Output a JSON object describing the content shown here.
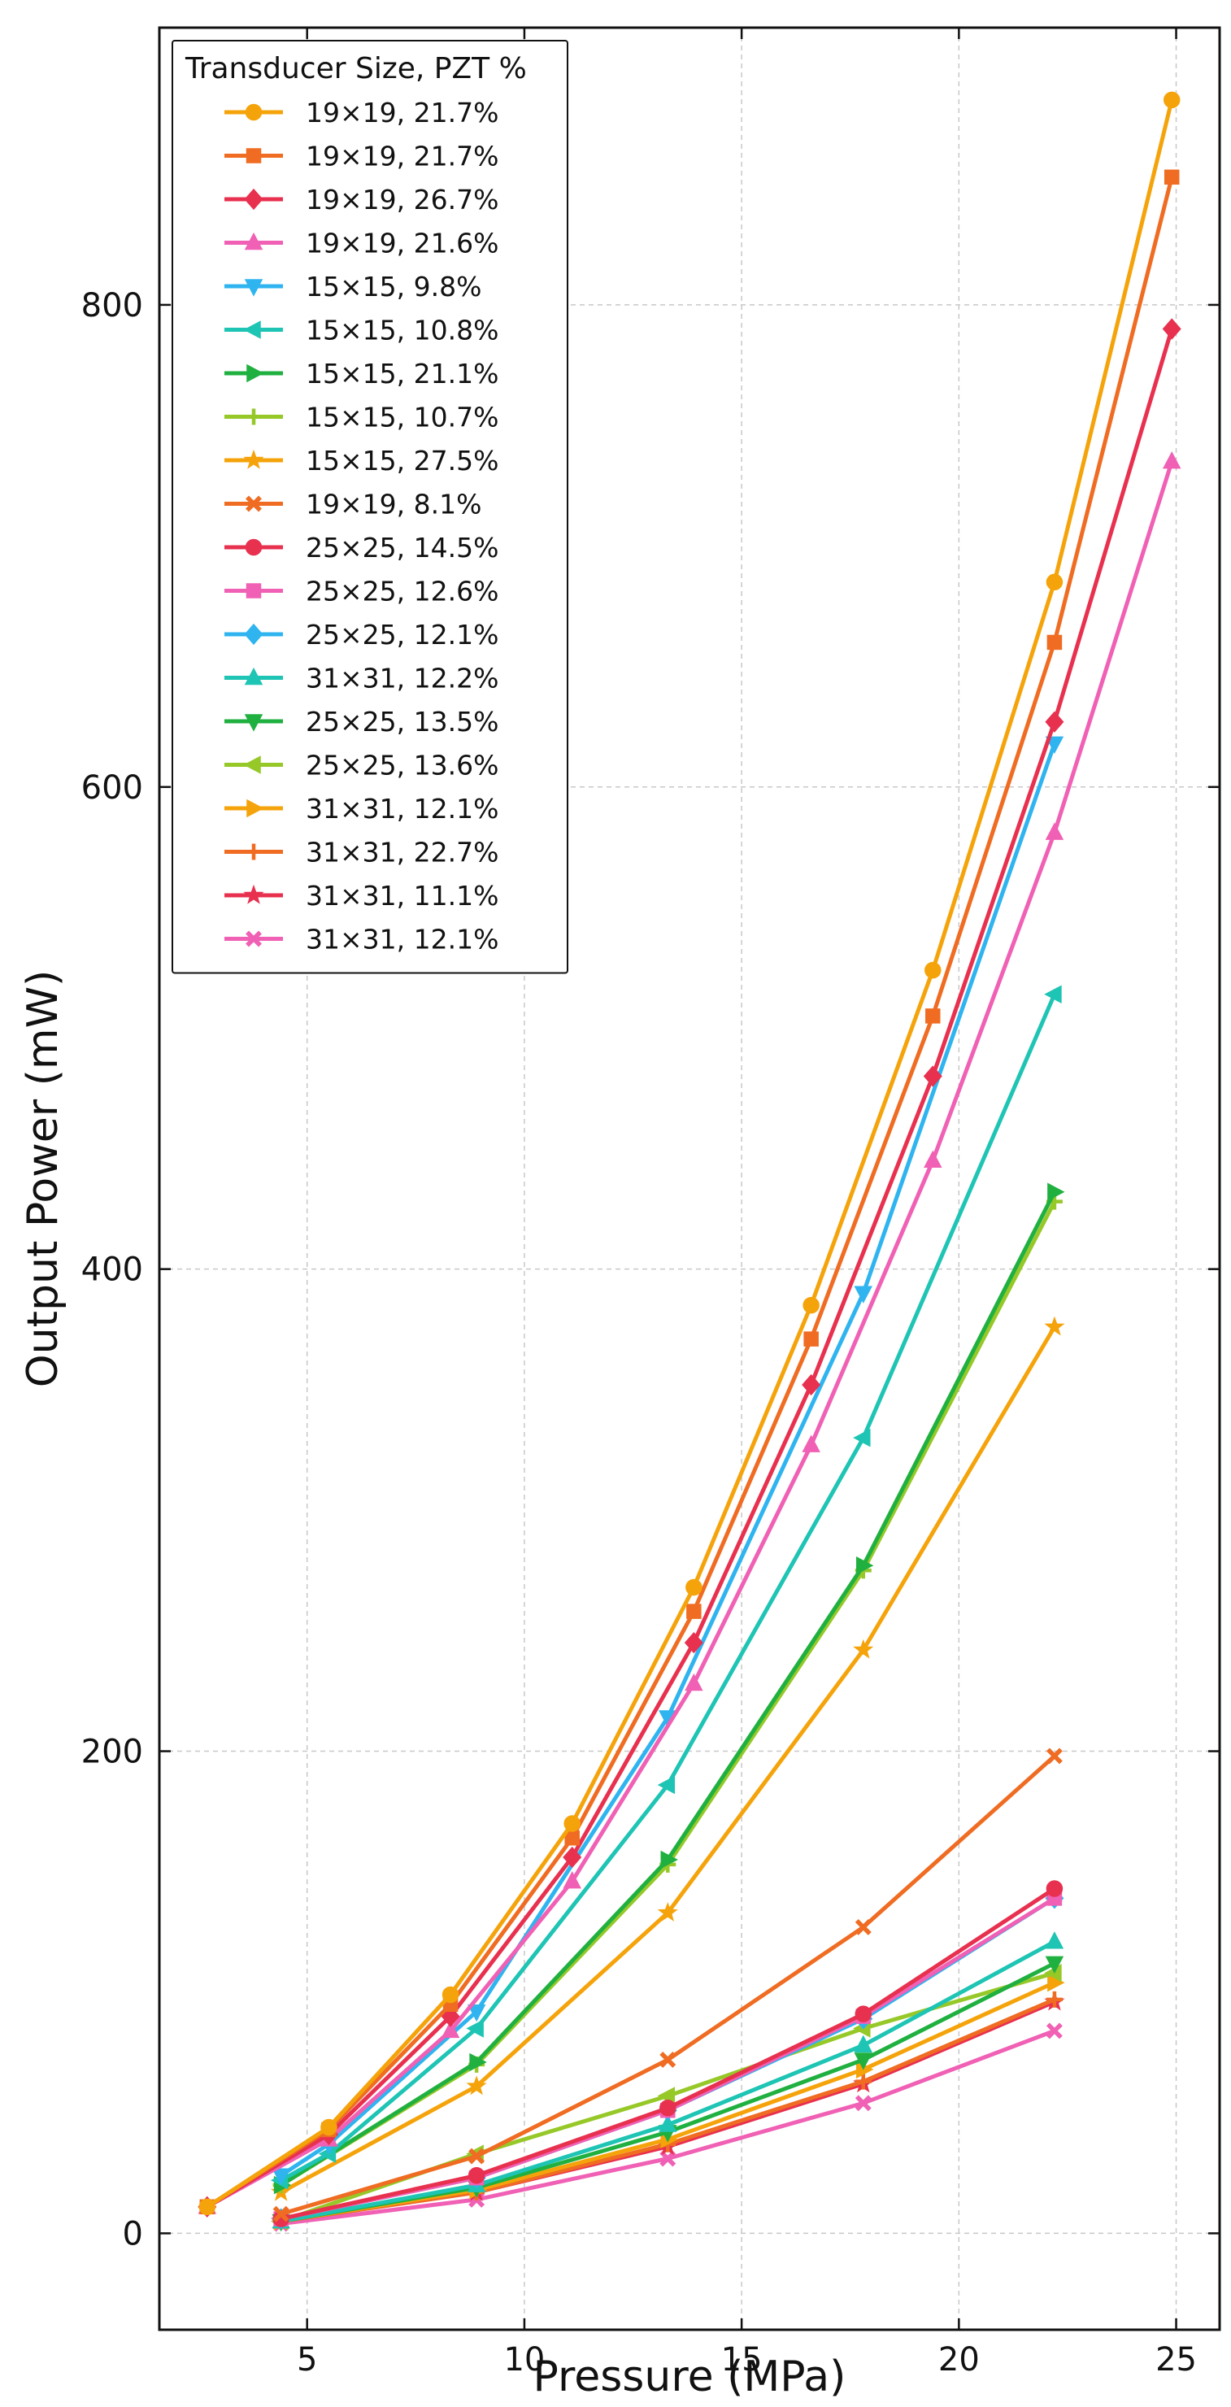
{
  "chart_data": {
    "type": "line",
    "title": "",
    "xlabel": "Pressure (MPa)",
    "ylabel": "Output Power (mW)",
    "xlim": [
      1.6,
      26.0
    ],
    "ylim": [
      -40,
      915
    ],
    "xticks": [
      5,
      10,
      15,
      20,
      25
    ],
    "yticks": [
      0,
      200,
      400,
      600,
      800
    ],
    "grid": true,
    "legend_title": "Transducer Size, PZT %",
    "legend_position": "top-left",
    "series": [
      {
        "name": "19×19, 21.7%",
        "color": "#F5A30A",
        "marker": "circle",
        "x": [
          2.7,
          5.5,
          8.3,
          11.1,
          13.9,
          16.6,
          19.4,
          22.2,
          24.9
        ],
        "y": [
          11,
          44,
          99,
          170,
          268,
          385,
          524,
          685,
          885
        ]
      },
      {
        "name": "19×19, 21.7%",
        "color": "#EF6C22",
        "marker": "square",
        "x": [
          2.7,
          5.5,
          8.3,
          11.1,
          13.9,
          16.6,
          19.4,
          22.2,
          24.9
        ],
        "y": [
          11,
          43,
          95,
          164,
          258,
          371,
          505,
          660,
          853
        ]
      },
      {
        "name": "19×19, 26.7%",
        "color": "#E8304F",
        "marker": "diamond",
        "x": [
          2.7,
          5.5,
          8.3,
          11.1,
          13.9,
          16.6,
          19.4,
          22.2,
          24.9
        ],
        "y": [
          11,
          41,
          90,
          156,
          245,
          352,
          480,
          627,
          790
        ]
      },
      {
        "name": "19×19, 21.6%",
        "color": "#F060B4",
        "marker": "triangle-up",
        "x": [
          2.7,
          5.5,
          8.3,
          11.1,
          13.9,
          16.6,
          19.4,
          22.2,
          24.9
        ],
        "y": [
          11,
          39,
          84,
          146,
          228,
          327,
          445,
          581,
          735
        ]
      },
      {
        "name": "15×15, 9.8%",
        "color": "#2FB4F0",
        "marker": "triangle-down",
        "x": [
          4.4,
          5.5,
          8.9,
          13.3,
          17.8,
          22.2
        ],
        "y": [
          24,
          37,
          92,
          214,
          390,
          618
        ]
      },
      {
        "name": "15×15, 10.8%",
        "color": "#1EC4B4",
        "marker": "triangle-left",
        "x": [
          4.4,
          5.5,
          8.9,
          13.3,
          17.8,
          22.2
        ],
        "y": [
          22,
          33,
          85,
          186,
          330,
          514
        ]
      },
      {
        "name": "15×15, 21.1%",
        "color": "#20B040",
        "marker": "triangle-right",
        "x": [
          4.4,
          8.9,
          13.3,
          17.8,
          22.2
        ],
        "y": [
          20,
          71,
          155,
          277,
          432
        ]
      },
      {
        "name": "15×15, 10.7%",
        "color": "#96C828",
        "marker": "plus",
        "x": [
          4.4,
          8.9,
          13.3,
          17.8,
          22.2
        ],
        "y": [
          20,
          70,
          153,
          275,
          428
        ]
      },
      {
        "name": "15×15, 27.5%",
        "color": "#F5A30A",
        "marker": "star",
        "x": [
          4.4,
          8.9,
          13.3,
          17.8,
          22.2
        ],
        "y": [
          17,
          61,
          133,
          242,
          376
        ]
      },
      {
        "name": "19×19, 8.1%",
        "color": "#EF6C22",
        "marker": "x",
        "x": [
          4.4,
          8.9,
          13.3,
          17.8,
          22.2
        ],
        "y": [
          8,
          32,
          72,
          127,
          198
        ]
      },
      {
        "name": "25×25, 14.5%",
        "color": "#E8304F",
        "marker": "circle",
        "x": [
          4.4,
          8.9,
          13.3,
          17.8,
          22.2
        ],
        "y": [
          6,
          24,
          52,
          91,
          143
        ]
      },
      {
        "name": "25×25, 12.6%",
        "color": "#F060B4",
        "marker": "square",
        "x": [
          4.4,
          8.9,
          13.3,
          17.8,
          22.2
        ],
        "y": [
          6,
          23,
          51,
          90,
          139
        ]
      },
      {
        "name": "25×25, 12.1%",
        "color": "#2FB4F0",
        "marker": "diamond",
        "x": [
          4.4,
          8.9,
          13.3,
          17.8,
          22.2
        ],
        "y": [
          6,
          23,
          51,
          89,
          139
        ]
      },
      {
        "name": "31×31, 12.2%",
        "color": "#1EC4B4",
        "marker": "triangle-up",
        "x": [
          4.4,
          8.9,
          13.3,
          17.8,
          22.2
        ],
        "y": [
          5,
          20,
          45,
          78,
          121
        ]
      },
      {
        "name": "25×25, 13.5%",
        "color": "#20B040",
        "marker": "triangle-down",
        "x": [
          4.4,
          8.9,
          13.3,
          17.8,
          22.2
        ],
        "y": [
          5,
          19,
          42,
          72,
          112
        ]
      },
      {
        "name": "25×25, 13.6%",
        "color": "#96C828",
        "marker": "triangle-left",
        "x": [
          4.4,
          8.9,
          13.3,
          17.8,
          22.2
        ],
        "y": [
          5,
          33,
          57,
          85,
          108
        ]
      },
      {
        "name": "31×31, 12.1%",
        "color": "#F5A30A",
        "marker": "triangle-right",
        "x": [
          4.4,
          8.9,
          13.3,
          17.8,
          22.2
        ],
        "y": [
          5,
          18,
          39,
          68,
          104
        ]
      },
      {
        "name": "31×31, 22.7%",
        "color": "#EF6C22",
        "marker": "plus",
        "x": [
          4.4,
          8.9,
          13.3,
          17.8,
          22.2
        ],
        "y": [
          5,
          17,
          37,
          63,
          97
        ]
      },
      {
        "name": "31×31, 11.1%",
        "color": "#E8304F",
        "marker": "star",
        "x": [
          4.4,
          8.9,
          13.3,
          17.8,
          22.2
        ],
        "y": [
          5,
          17,
          36,
          62,
          96
        ]
      },
      {
        "name": "31×31, 12.1%",
        "color": "#F060B4",
        "marker": "x",
        "x": [
          4.4,
          8.9,
          13.3,
          17.8,
          22.2
        ],
        "y": [
          4,
          14,
          31,
          54,
          84
        ]
      }
    ]
  }
}
